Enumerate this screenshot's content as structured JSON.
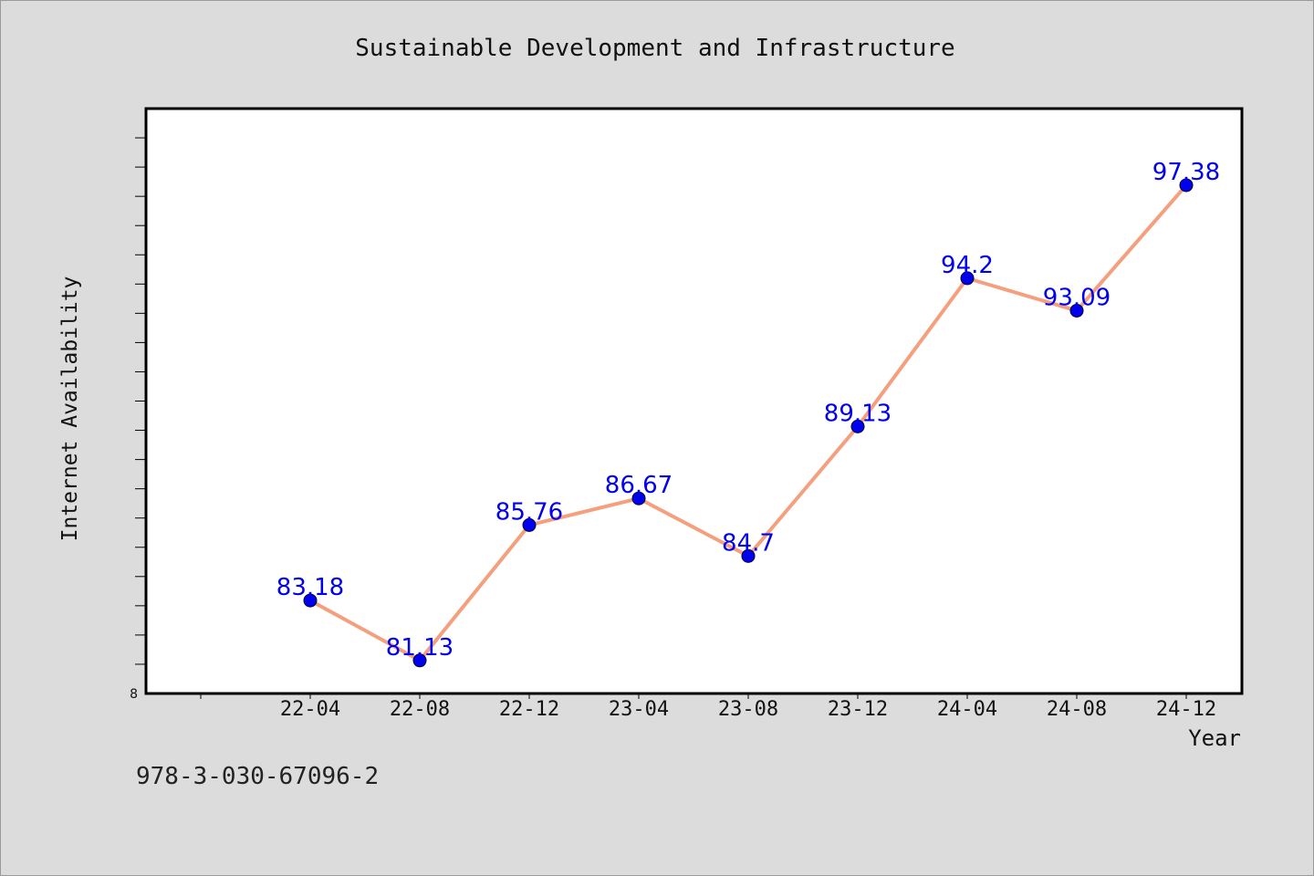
{
  "chart_data": {
    "type": "line",
    "title": "Sustainable Development and Infrastructure",
    "xlabel": "Year",
    "ylabel": "Internet Availability",
    "categories": [
      "22-04",
      "22-08",
      "22-12",
      "23-04",
      "23-08",
      "23-12",
      "24-04",
      "24-08",
      "24-12"
    ],
    "series": [
      {
        "values": [
          83.18,
          81.13,
          85.76,
          86.67,
          84.7,
          89.13,
          94.2,
          93.09,
          97.38
        ],
        "labels": [
          "83.18",
          "81.13",
          "85.76",
          "86.67",
          "84.7",
          "89.13",
          "94.2",
          "93.09",
          "97.38"
        ]
      }
    ],
    "ylim": [
      80,
      100
    ],
    "y_tick_label": "8",
    "grid": false,
    "colors": {
      "line": "#f4a07f",
      "marker": "#0000ee",
      "label": "#0000ee"
    }
  },
  "footer": {
    "isbn": "978-3-030-67096-2"
  }
}
